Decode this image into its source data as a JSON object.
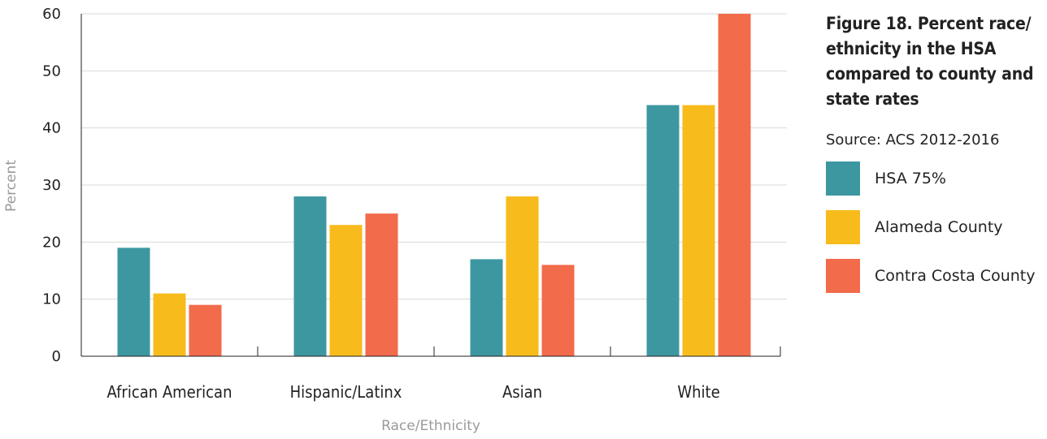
{
  "figure": {
    "title": "Figure 18. Percent race/ ethnicity in the HSA compared to county and state rates",
    "source": "Source: ACS 2012-2016"
  },
  "chart_data": {
    "type": "bar",
    "categories": [
      "African American",
      "Hispanic/Latinx",
      "Asian",
      "White"
    ],
    "series": [
      {
        "name": "HSA 75%",
        "color": "#3d97a0",
        "values": [
          19,
          28,
          17,
          44
        ]
      },
      {
        "name": "Alameda County",
        "color": "#f8bb1c",
        "values": [
          11,
          23,
          28,
          44
        ]
      },
      {
        "name": "Contra Costa County",
        "color": "#f26b4b",
        "values": [
          9,
          25,
          16,
          60
        ]
      }
    ],
    "xlabel": "Race/Ethnicity",
    "ylabel": "Percent",
    "ylim": [
      0,
      60
    ],
    "yticks": [
      0,
      10,
      20,
      30,
      40,
      50,
      60
    ],
    "grid": true,
    "legend_position": "right"
  }
}
